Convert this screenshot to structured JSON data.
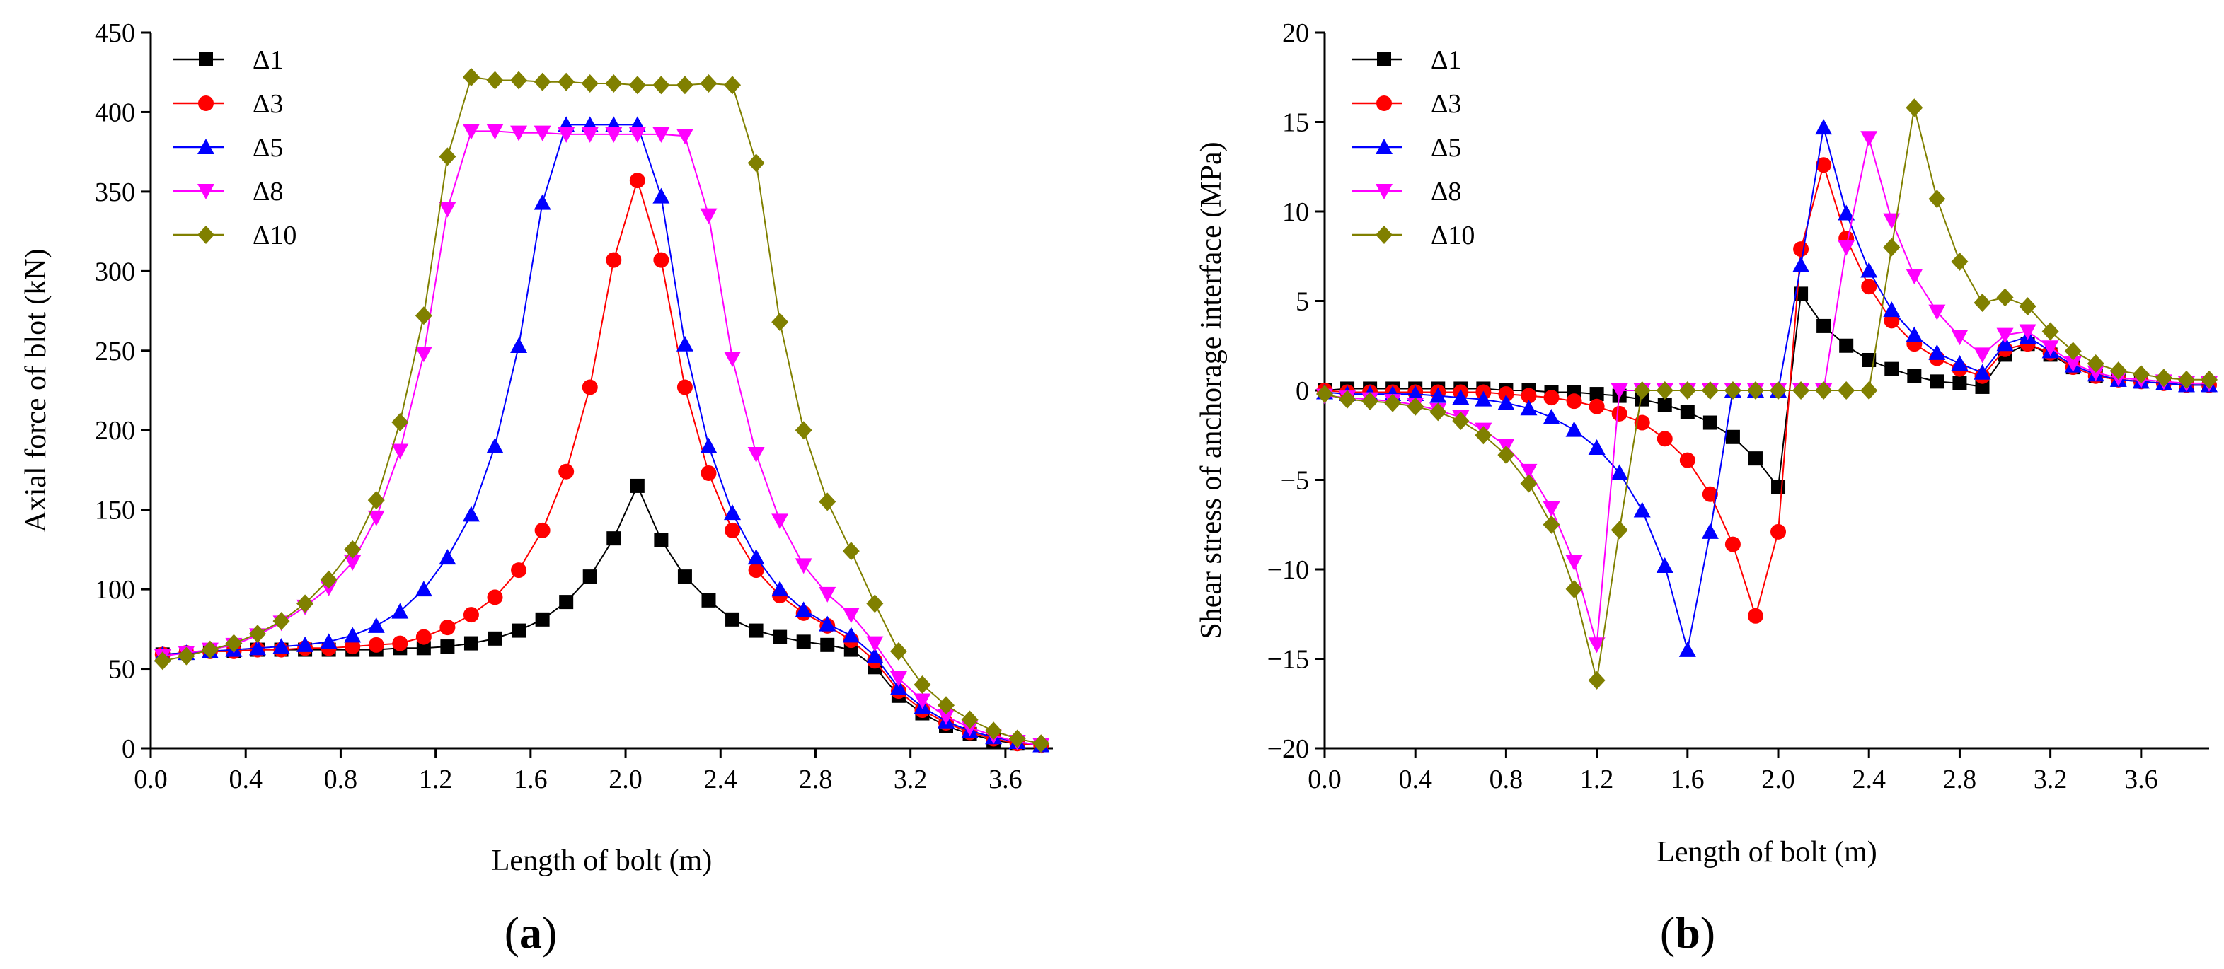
{
  "panels": [
    {
      "label_open": "(",
      "label_letter": "a",
      "label_close": ")"
    },
    {
      "label_open": "(",
      "label_letter": "b",
      "label_close": ")"
    }
  ],
  "chart_data": [
    {
      "type": "line",
      "xlabel": "Length of bolt (m)",
      "ylabel": "Axial force of blot (kN)",
      "xlim": [
        0.0,
        3.8
      ],
      "ylim": [
        0,
        450
      ],
      "x_ticks": [
        0.0,
        0.4,
        0.8,
        1.2,
        1.6,
        2.0,
        2.4,
        2.8,
        3.2,
        3.6
      ],
      "y_ticks": [
        0,
        50,
        100,
        150,
        200,
        250,
        300,
        350,
        400,
        450
      ],
      "x_tick_labels": [
        "0.0",
        "0.4",
        "0.8",
        "1.2",
        "1.6",
        "2.0",
        "2.4",
        "2.8",
        "3.2",
        "3.6"
      ],
      "y_tick_labels": [
        "0",
        "50",
        "100",
        "150",
        "200",
        "250",
        "300",
        "350",
        "400",
        "450"
      ],
      "grid": false,
      "legend_position": "top-left",
      "x": [
        0.05,
        0.15,
        0.25,
        0.35,
        0.45,
        0.55,
        0.65,
        0.75,
        0.85,
        0.95,
        1.05,
        1.15,
        1.25,
        1.35,
        1.45,
        1.55,
        1.65,
        1.75,
        1.85,
        1.95,
        2.05,
        2.15,
        2.25,
        2.35,
        2.45,
        2.55,
        2.65,
        2.75,
        2.85,
        2.95,
        3.05,
        3.15,
        3.25,
        3.35,
        3.45,
        3.55,
        3.65,
        3.75
      ],
      "series": [
        {
          "name": "Δ1",
          "color": "#000000",
          "marker": "square",
          "values": [
            59,
            60,
            61,
            61,
            62,
            62,
            62,
            62,
            62,
            62,
            63,
            63,
            64,
            66,
            69,
            74,
            81,
            92,
            108,
            132,
            165,
            131,
            108,
            93,
            81,
            74,
            70,
            67,
            65,
            62,
            51,
            33,
            22,
            14,
            9,
            5,
            3,
            2
          ]
        },
        {
          "name": "Δ3",
          "color": "#ff0000",
          "marker": "circle",
          "values": [
            59,
            60,
            61,
            61,
            62,
            62,
            63,
            63,
            64,
            65,
            66,
            70,
            76,
            84,
            95,
            112,
            137,
            174,
            227,
            307,
            357,
            307,
            227,
            173,
            137,
            112,
            96,
            85,
            77,
            68,
            55,
            36,
            24,
            16,
            10,
            6,
            3,
            2
          ]
        },
        {
          "name": "Δ5",
          "color": "#0000ff",
          "marker": "triangle-up",
          "values": [
            59,
            60,
            61,
            62,
            63,
            64,
            65,
            67,
            71,
            77,
            86,
            100,
            120,
            147,
            190,
            253,
            343,
            392,
            392,
            392,
            392,
            347,
            254,
            190,
            148,
            120,
            100,
            87,
            78,
            71,
            58,
            38,
            26,
            17,
            11,
            7,
            4,
            2
          ]
        },
        {
          "name": "Δ8",
          "color": "#ff00ff",
          "marker": "triangle-down",
          "values": [
            58,
            60,
            62,
            65,
            71,
            79,
            89,
            101,
            117,
            145,
            187,
            248,
            339,
            388,
            388,
            387,
            387,
            386,
            386,
            386,
            386,
            386,
            385,
            335,
            245,
            185,
            143,
            115,
            97,
            84,
            66,
            44,
            30,
            20,
            13,
            8,
            4,
            2
          ]
        },
        {
          "name": "Δ10",
          "color": "#808000",
          "marker": "diamond",
          "values": [
            55,
            58,
            62,
            66,
            72,
            80,
            91,
            106,
            125,
            156,
            205,
            272,
            372,
            422,
            420,
            420,
            419,
            419,
            418,
            418,
            417,
            417,
            417,
            418,
            417,
            368,
            268,
            200,
            155,
            124,
            91,
            61,
            40,
            27,
            18,
            11,
            6,
            3
          ]
        }
      ]
    },
    {
      "type": "line",
      "xlabel": "Length of bolt (m)",
      "ylabel": "Shear stress of anchorage interface (MPa)",
      "xlim": [
        0.0,
        3.9
      ],
      "ylim": [
        -20,
        20
      ],
      "x_ticks": [
        0.0,
        0.4,
        0.8,
        1.2,
        1.6,
        2.0,
        2.4,
        2.8,
        3.2,
        3.6
      ],
      "y_ticks": [
        -20,
        -15,
        -10,
        -5,
        0,
        5,
        10,
        15,
        20
      ],
      "x_tick_labels": [
        "0.0",
        "0.4",
        "0.8",
        "1.2",
        "1.6",
        "2.0",
        "2.4",
        "2.8",
        "3.2",
        "3.6"
      ],
      "y_tick_labels": [
        "−20",
        "−15",
        "−10",
        "−5",
        "0",
        "5",
        "10",
        "15",
        "20"
      ],
      "grid": false,
      "legend_position": "top-left",
      "x": [
        0.0,
        0.1,
        0.2,
        0.3,
        0.4,
        0.5,
        0.6,
        0.7,
        0.8,
        0.9,
        1.0,
        1.1,
        1.2,
        1.3,
        1.4,
        1.5,
        1.6,
        1.7,
        1.8,
        1.9,
        2.0,
        2.1,
        2.2,
        2.3,
        2.4,
        2.5,
        2.6,
        2.7,
        2.8,
        2.9,
        3.0,
        3.1,
        3.2,
        3.3,
        3.4,
        3.5,
        3.6,
        3.7,
        3.8,
        3.9
      ],
      "series": [
        {
          "name": "Δ1",
          "color": "#000000",
          "marker": "square",
          "values": [
            0,
            0.1,
            0.1,
            0.1,
            0.1,
            0.1,
            0.1,
            0.1,
            0,
            0,
            -0.1,
            -0.1,
            -0.2,
            -0.3,
            -0.5,
            -0.8,
            -1.2,
            -1.8,
            -2.6,
            -3.8,
            -5.4,
            5.4,
            3.6,
            2.5,
            1.7,
            1.2,
            0.8,
            0.5,
            0.4,
            0.2,
            2.0,
            2.6,
            2.0,
            1.3,
            0.8,
            0.6,
            0.5,
            0.4,
            0.3,
            0.3
          ]
        },
        {
          "name": "Δ3",
          "color": "#ff0000",
          "marker": "circle",
          "values": [
            0,
            -0.1,
            -0.1,
            -0.1,
            -0.1,
            -0.1,
            -0.1,
            -0.1,
            -0.2,
            -0.3,
            -0.4,
            -0.6,
            -0.9,
            -1.3,
            -1.8,
            -2.7,
            -3.9,
            -5.8,
            -8.6,
            -12.6,
            -7.9,
            7.9,
            12.6,
            8.5,
            5.8,
            3.9,
            2.6,
            1.8,
            1.2,
            0.8,
            2.3,
            2.6,
            2.1,
            1.3,
            0.8,
            0.6,
            0.5,
            0.4,
            0.3,
            0.3
          ]
        },
        {
          "name": "Δ5",
          "color": "#0000ff",
          "marker": "triangle-up",
          "values": [
            -0.1,
            -0.2,
            -0.2,
            -0.2,
            -0.2,
            -0.3,
            -0.4,
            -0.5,
            -0.7,
            -1.0,
            -1.5,
            -2.2,
            -3.2,
            -4.6,
            -6.7,
            -9.8,
            -14.5,
            -7.9,
            0,
            0,
            0,
            7.0,
            14.7,
            9.9,
            6.7,
            4.5,
            3.1,
            2.1,
            1.5,
            1.0,
            2.6,
            3.0,
            2.2,
            1.4,
            0.9,
            0.6,
            0.5,
            0.4,
            0.3,
            0.3
          ]
        },
        {
          "name": "Δ8",
          "color": "#ff00ff",
          "marker": "triangle-down",
          "values": [
            -0.3,
            -0.4,
            -0.5,
            -0.6,
            -0.8,
            -1.1,
            -1.5,
            -2.2,
            -3.1,
            -4.5,
            -6.6,
            -9.6,
            -14.2,
            0,
            0,
            0,
            0,
            0,
            0,
            0,
            0,
            0,
            0,
            8.0,
            14.1,
            9.5,
            6.4,
            4.4,
            3.0,
            2.0,
            3.1,
            3.3,
            2.4,
            1.5,
            1.0,
            0.7,
            0.6,
            0.5,
            0.4,
            0.4
          ]
        },
        {
          "name": "Δ10",
          "color": "#808000",
          "marker": "diamond",
          "values": [
            -0.2,
            -0.5,
            -0.6,
            -0.7,
            -0.9,
            -1.2,
            -1.7,
            -2.5,
            -3.6,
            -5.2,
            -7.5,
            -11.1,
            -16.2,
            -7.8,
            0,
            0,
            0,
            0,
            0,
            0,
            0,
            0,
            0,
            0,
            0,
            8.0,
            15.8,
            10.7,
            7.2,
            4.9,
            5.2,
            4.7,
            3.3,
            2.2,
            1.5,
            1.1,
            0.9,
            0.7,
            0.6,
            0.6
          ]
        }
      ]
    }
  ]
}
